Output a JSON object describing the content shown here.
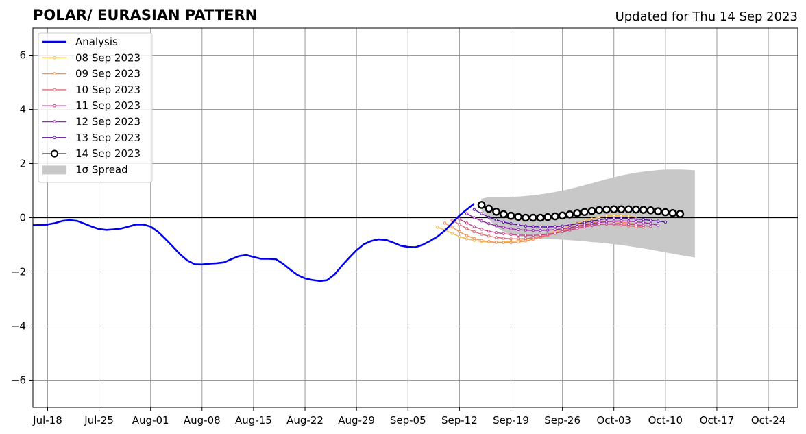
{
  "chart_data": {
    "type": "line",
    "title": "POLAR/ EURASIAN  PATTERN",
    "subtitle": "Updated for Thu 14 Sep 2023",
    "xlabel": "",
    "ylabel": "",
    "x_ticks": [
      "Jul-18",
      "Jul-25",
      "Aug-01",
      "Aug-08",
      "Aug-15",
      "Aug-22",
      "Aug-29",
      "Sep-05",
      "Sep-12",
      "Sep-19",
      "Sep-26",
      "Oct-03",
      "Oct-10",
      "Oct-17",
      "Oct-24"
    ],
    "y_ticks": [
      6,
      4,
      2,
      0,
      -2,
      -4,
      -6
    ],
    "ylim": [
      -7,
      7
    ],
    "xlim": [
      "2023-07-16",
      "2023-10-28"
    ],
    "grid": true,
    "legend_position": "top-left",
    "zero_line": 0,
    "colors": {
      "analysis": "#0000ee",
      "spread": "#c8c8c8",
      "grid": "#9a9a9a",
      "f0908": "#f5b942",
      "f0909": "#f09454",
      "f0910": "#e06b75",
      "f0911": "#c2488a",
      "f0912": "#9a2ab0",
      "f0913": "#5a0fa8",
      "f0914": "#000000"
    },
    "legend": [
      {
        "label": "Analysis",
        "key": "analysis",
        "style": "line"
      },
      {
        "label": "08 Sep 2023",
        "key": "f0908",
        "style": "dotline"
      },
      {
        "label": "09 Sep 2023",
        "key": "f0909",
        "style": "dotline"
      },
      {
        "label": "10 Sep 2023",
        "key": "f0910",
        "style": "dotline"
      },
      {
        "label": "11 Sep 2023",
        "key": "f0911",
        "style": "dotline"
      },
      {
        "label": "12 Sep 2023",
        "key": "f0912",
        "style": "dotline"
      },
      {
        "label": "13 Sep 2023",
        "key": "f0913",
        "style": "dotline"
      },
      {
        "label": "14 Sep 2023",
        "key": "f0914",
        "style": "circleline"
      },
      {
        "label": "1σ Spread",
        "key": "spread",
        "style": "patch"
      }
    ],
    "analysis": {
      "start": "2023-07-16",
      "values": [
        -0.28,
        -0.27,
        -0.25,
        -0.2,
        -0.12,
        -0.09,
        -0.12,
        -0.22,
        -0.33,
        -0.42,
        -0.45,
        -0.43,
        -0.4,
        -0.33,
        -0.25,
        -0.25,
        -0.33,
        -0.52,
        -0.78,
        -1.06,
        -1.35,
        -1.58,
        -1.72,
        -1.73,
        -1.7,
        -1.68,
        -1.65,
        -1.53,
        -1.42,
        -1.38,
        -1.45,
        -1.52,
        -1.52,
        -1.53,
        -1.7,
        -1.92,
        -2.12,
        -2.24,
        -2.3,
        -2.34,
        -2.31,
        -2.1,
        -1.78,
        -1.48,
        -1.2,
        -0.98,
        -0.86,
        -0.8,
        -0.82,
        -0.92,
        -1.03,
        -1.08,
        -1.09,
        -1.0,
        -0.86,
        -0.7,
        -0.48,
        -0.2,
        0.08,
        0.3,
        0.52
      ]
    },
    "series": [
      {
        "name": "08 Sep 2023",
        "key": "f0908",
        "start": "2023-09-09",
        "values": [
          -0.35,
          -0.45,
          -0.58,
          -0.7,
          -0.78,
          -0.84,
          -0.88,
          -0.9,
          -0.91,
          -0.9,
          -0.88,
          -0.85,
          -0.8,
          -0.75,
          -0.68,
          -0.6,
          -0.5,
          -0.4,
          -0.3,
          -0.2,
          -0.12,
          -0.05,
          0.02,
          0.06,
          0.08,
          0.07,
          0.05,
          0.02
        ]
      },
      {
        "name": "09 Sep 2023",
        "key": "f0909",
        "start": "2023-09-10",
        "values": [
          -0.2,
          -0.35,
          -0.52,
          -0.66,
          -0.77,
          -0.84,
          -0.88,
          -0.91,
          -0.92,
          -0.92,
          -0.9,
          -0.86,
          -0.8,
          -0.73,
          -0.65,
          -0.56,
          -0.47,
          -0.38,
          -0.3,
          -0.23,
          -0.18,
          -0.15,
          -0.14,
          -0.15,
          -0.17,
          -0.2,
          -0.23
        ]
      },
      {
        "name": "10 Sep 2023",
        "key": "f0910",
        "start": "2023-09-11",
        "values": [
          -0.1,
          -0.25,
          -0.4,
          -0.52,
          -0.61,
          -0.68,
          -0.73,
          -0.76,
          -0.78,
          -0.78,
          -0.77,
          -0.74,
          -0.7,
          -0.65,
          -0.58,
          -0.5,
          -0.42,
          -0.36,
          -0.3,
          -0.26,
          -0.24,
          -0.24,
          -0.25,
          -0.27,
          -0.3,
          -0.33,
          -0.35
        ]
      },
      {
        "name": "11 Sep 2023",
        "key": "f0911",
        "start": "2023-09-12",
        "values": [
          -0.05,
          -0.2,
          -0.33,
          -0.43,
          -0.5,
          -0.55,
          -0.59,
          -0.62,
          -0.64,
          -0.65,
          -0.65,
          -0.64,
          -0.61,
          -0.57,
          -0.52,
          -0.46,
          -0.4,
          -0.34,
          -0.29,
          -0.25,
          -0.23,
          -0.22,
          -0.22,
          -0.24,
          -0.26,
          -0.29,
          -0.32
        ]
      },
      {
        "name": "12 Sep 2023",
        "key": "f0912",
        "start": "2023-09-13",
        "values": [
          0.15,
          0.0,
          -0.12,
          -0.22,
          -0.3,
          -0.36,
          -0.41,
          -0.44,
          -0.46,
          -0.47,
          -0.47,
          -0.46,
          -0.44,
          -0.41,
          -0.37,
          -0.32,
          -0.27,
          -0.22,
          -0.18,
          -0.15,
          -0.13,
          -0.12,
          -0.13,
          -0.15,
          -0.18,
          -0.22,
          -0.28
        ]
      },
      {
        "name": "13 Sep 2023",
        "key": "f0913",
        "start": "2023-09-14",
        "values": [
          0.3,
          0.15,
          0.02,
          -0.08,
          -0.16,
          -0.22,
          -0.27,
          -0.31,
          -0.33,
          -0.34,
          -0.34,
          -0.33,
          -0.31,
          -0.27,
          -0.23,
          -0.18,
          -0.13,
          -0.08,
          -0.04,
          -0.02,
          -0.02,
          -0.03,
          -0.05,
          -0.07,
          -0.1,
          -0.13,
          -0.16
        ]
      },
      {
        "name": "14 Sep 2023",
        "key": "f0914",
        "start": "2023-09-15",
        "values": [
          0.47,
          0.33,
          0.22,
          0.13,
          0.07,
          0.03,
          0.0,
          0.0,
          0.0,
          0.02,
          0.05,
          0.08,
          0.12,
          0.17,
          0.21,
          0.25,
          0.28,
          0.3,
          0.31,
          0.31,
          0.31,
          0.3,
          0.29,
          0.27,
          0.24,
          0.2,
          0.17,
          0.14
        ]
      }
    ],
    "spread": {
      "start": "2023-09-15",
      "upper": [
        0.7,
        0.76,
        0.76,
        0.76,
        0.77,
        0.78,
        0.8,
        0.83,
        0.86,
        0.9,
        0.95,
        1.0,
        1.06,
        1.13,
        1.2,
        1.27,
        1.35,
        1.42,
        1.49,
        1.56,
        1.61,
        1.66,
        1.7,
        1.73,
        1.76,
        1.78,
        1.78,
        1.78,
        1.77,
        1.75
      ],
      "lower": [
        0.25,
        -0.05,
        -0.35,
        -0.52,
        -0.62,
        -0.68,
        -0.72,
        -0.75,
        -0.77,
        -0.79,
        -0.8,
        -0.81,
        -0.83,
        -0.85,
        -0.87,
        -0.9,
        -0.92,
        -0.95,
        -0.98,
        -1.01,
        -1.05,
        -1.09,
        -1.13,
        -1.18,
        -1.23,
        -1.28,
        -1.33,
        -1.38,
        -1.42,
        -1.47
      ]
    }
  }
}
